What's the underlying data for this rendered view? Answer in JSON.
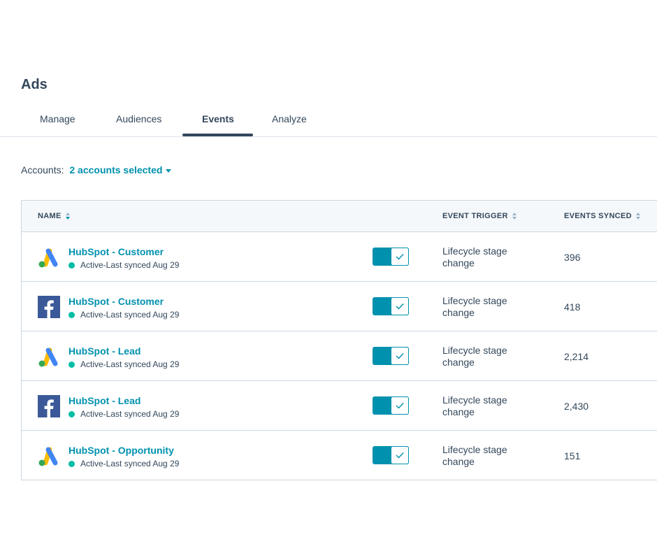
{
  "page": {
    "title": "Ads"
  },
  "tabs": [
    {
      "label": "Manage",
      "active": false
    },
    {
      "label": "Audiences",
      "active": false
    },
    {
      "label": "Events",
      "active": true
    },
    {
      "label": "Analyze",
      "active": false
    }
  ],
  "accounts": {
    "label": "Accounts:",
    "value": "2 accounts selected"
  },
  "table": {
    "headers": {
      "name": "NAME",
      "trigger": "EVENT TRIGGER",
      "synced": "EVENTS SYNCED"
    },
    "rows": [
      {
        "platform": "google-ads",
        "name": "HubSpot - Customer",
        "status": "Active-Last synced Aug 29",
        "enabled": true,
        "trigger_line1": "Lifecycle stage",
        "trigger_line2": "change",
        "events_synced": "396"
      },
      {
        "platform": "facebook",
        "name": "HubSpot - Customer",
        "status": "Active-Last synced Aug 29",
        "enabled": true,
        "trigger_line1": "Lifecycle stage",
        "trigger_line2": "change",
        "events_synced": "418"
      },
      {
        "platform": "google-ads",
        "name": "HubSpot - Lead",
        "status": "Active-Last synced Aug 29",
        "enabled": true,
        "trigger_line1": "Lifecycle stage",
        "trigger_line2": "change",
        "events_synced": "2,214"
      },
      {
        "platform": "facebook",
        "name": "HubSpot - Lead",
        "status": "Active-Last synced Aug 29",
        "enabled": true,
        "trigger_line1": "Lifecycle stage",
        "trigger_line2": "change",
        "events_synced": "2,430"
      },
      {
        "platform": "google-ads",
        "name": "HubSpot - Opportunity",
        "status": "Active-Last synced Aug 29",
        "enabled": true,
        "trigger_line1": "Lifecycle stage",
        "trigger_line2": "change",
        "events_synced": "151"
      }
    ]
  },
  "colors": {
    "accent": "#0091ae",
    "text": "#33475b",
    "status_active": "#00bda5",
    "border": "#cbd6e2",
    "header_bg": "#f5f8fa"
  }
}
